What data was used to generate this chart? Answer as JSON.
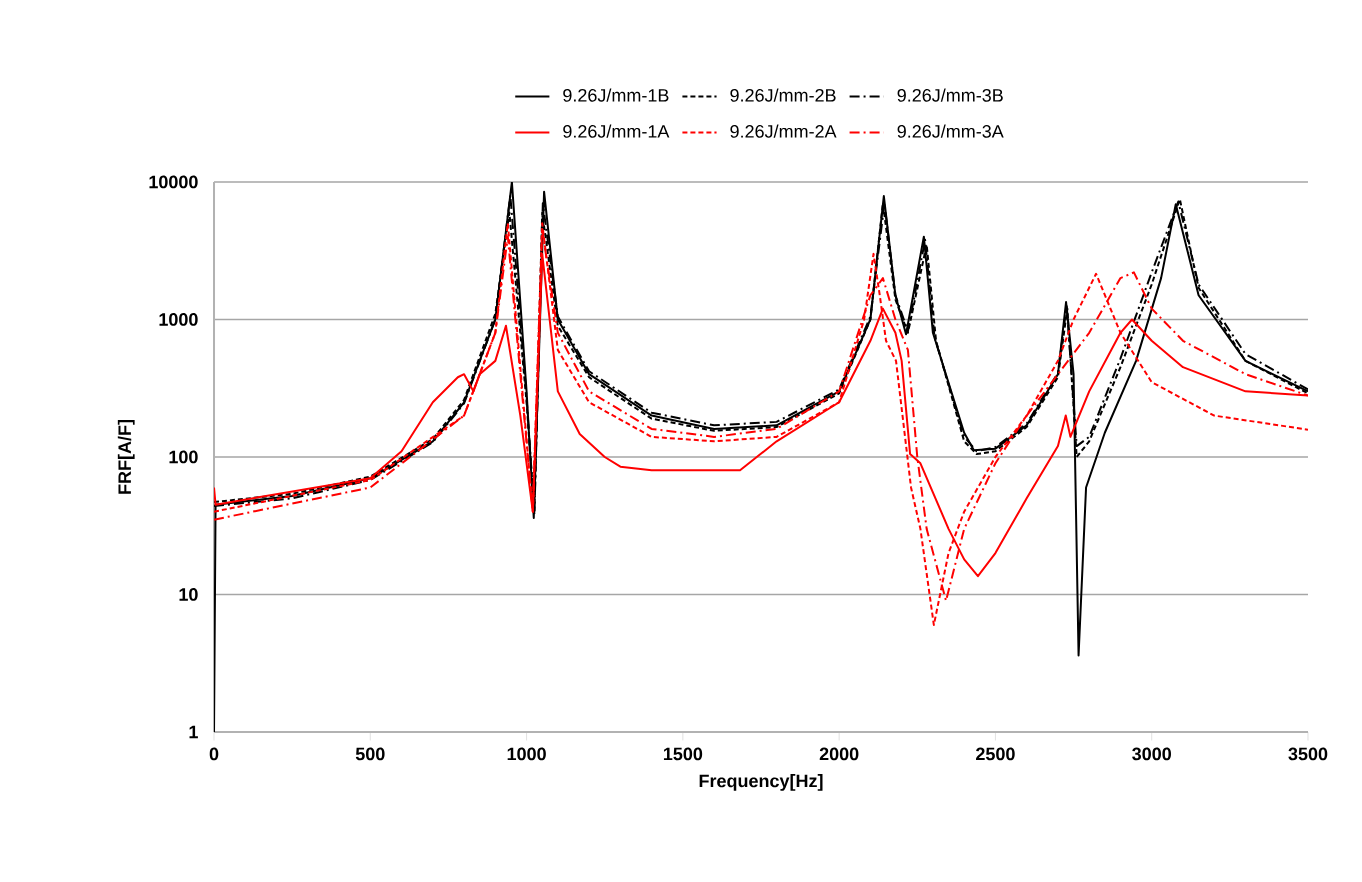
{
  "chart_data": {
    "type": "line",
    "xlabel": "Frequency[Hz]",
    "ylabel": "FRF[A/F]",
    "xlim": [
      0,
      3500
    ],
    "xticks": [
      0,
      500,
      1000,
      1500,
      2000,
      2500,
      3000,
      3500
    ],
    "ylim": [
      1,
      10000
    ],
    "yticks": [
      1,
      10,
      100,
      1000,
      10000
    ],
    "log": "y",
    "grid": "y",
    "legend": "top",
    "marker": "none",
    "series": [
      {
        "name": "9.26J/mm-1B",
        "color": "#000000",
        "line_style": "solid",
        "x": [
          0,
          5,
          250,
          500,
          700,
          800,
          900,
          953,
          1000,
          1023,
          1056,
          1100,
          1200,
          1400,
          1600,
          1800,
          2000,
          2100,
          2143,
          2180,
          2214,
          2271,
          2300,
          2400,
          2431,
          2500,
          2600,
          2700,
          2726,
          2750,
          2766,
          2790,
          2850,
          2950,
          3030,
          3077,
          3150,
          3300,
          3500
        ],
        "values": [
          1,
          45,
          52,
          70,
          130,
          250,
          1000,
          10000,
          300,
          36,
          8500,
          1000,
          400,
          200,
          160,
          170,
          300,
          1000,
          7900,
          1500,
          780,
          4000,
          800,
          150,
          112,
          115,
          170,
          400,
          1340,
          400,
          3.6,
          60,
          150,
          500,
          2000,
          6900,
          1500,
          500,
          300
        ]
      },
      {
        "name": "9.26J/mm-2B",
        "color": "#000000",
        "line_style": "dashed",
        "x": [
          0,
          250,
          500,
          700,
          800,
          900,
          945,
          1000,
          1025,
          1050,
          1100,
          1200,
          1400,
          1600,
          1800,
          2000,
          2100,
          2140,
          2180,
          2220,
          2280,
          2310,
          2400,
          2440,
          2500,
          2600,
          2700,
          2730,
          2760,
          2800,
          2900,
          3000,
          3090,
          3150,
          3300,
          3500
        ],
        "values": [
          47,
          54,
          72,
          135,
          260,
          1100,
          6000,
          250,
          40,
          6000,
          900,
          380,
          190,
          155,
          165,
          290,
          1000,
          7000,
          1400,
          800,
          3500,
          700,
          130,
          105,
          110,
          165,
          380,
          1200,
          100,
          130,
          450,
          1800,
          7500,
          1700,
          500,
          290
        ]
      },
      {
        "name": "9.26J/mm-3B",
        "color": "#000000",
        "line_style": "dashdot",
        "x": [
          0,
          250,
          500,
          700,
          800,
          900,
          948,
          1000,
          1025,
          1052,
          1100,
          1200,
          1400,
          1600,
          1800,
          2000,
          2100,
          2145,
          2180,
          2220,
          2275,
          2305,
          2400,
          2440,
          2500,
          2600,
          2700,
          2728,
          2760,
          2800,
          2900,
          3000,
          3085,
          3150,
          3300,
          3500
        ],
        "values": [
          44,
          50,
          68,
          128,
          245,
          1000,
          8000,
          270,
          38,
          7000,
          1050,
          420,
          210,
          170,
          180,
          310,
          1050,
          7000,
          1500,
          820,
          3800,
          750,
          140,
          110,
          118,
          175,
          410,
          1250,
          120,
          140,
          520,
          2200,
          7200,
          1800,
          560,
          310
        ]
      },
      {
        "name": "9.26J/mm-1A",
        "color": "#ff0000",
        "line_style": "solid",
        "x": [
          0,
          5,
          500,
          600,
          700,
          780,
          800,
          830,
          850,
          900,
          934,
          980,
          1020,
          1050,
          1100,
          1170,
          1250,
          1300,
          1400,
          1683,
          1800,
          2000,
          2100,
          2140,
          2180,
          2200,
          2227,
          2260,
          2350,
          2400,
          2444,
          2500,
          2600,
          2700,
          2725,
          2740,
          2800,
          2900,
          2937,
          3000,
          3100,
          3300,
          3500
        ],
        "values": [
          60,
          45,
          70,
          110,
          250,
          380,
          400,
          300,
          400,
          500,
          900,
          200,
          40,
          3000,
          300,
          147,
          100,
          85,
          80,
          80,
          130,
          250,
          700,
          1200,
          800,
          500,
          105,
          90,
          30,
          18,
          13.6,
          20,
          50,
          120,
          200,
          140,
          300,
          800,
          1000,
          700,
          450,
          300,
          280
        ]
      },
      {
        "name": "9.26J/mm-2A",
        "color": "#ff0000",
        "line_style": "dashed",
        "x": [
          0,
          500,
          800,
          900,
          940,
          1020,
          1050,
          1100,
          1200,
          1400,
          1600,
          1800,
          2000,
          2080,
          2110,
          2130,
          2150,
          2182,
          2230,
          2260,
          2303,
          2350,
          2400,
          2500,
          2600,
          2700,
          2750,
          2822,
          2900,
          3000,
          3200,
          3500
        ],
        "values": [
          40,
          68,
          200,
          800,
          5000,
          40,
          5000,
          600,
          250,
          140,
          130,
          140,
          250,
          1000,
          3000,
          1500,
          700,
          500,
          60,
          30,
          6,
          20,
          40,
          100,
          200,
          500,
          1000,
          2150,
          800,
          350,
          200,
          158
        ]
      },
      {
        "name": "9.26J/mm-3A",
        "color": "#ff0000",
        "line_style": "dashdot",
        "x": [
          0,
          500,
          800,
          900,
          940,
          1020,
          1050,
          1100,
          1200,
          1400,
          1600,
          1800,
          2000,
          2100,
          2140,
          2180,
          2220,
          2250,
          2280,
          2342,
          2400,
          2500,
          2600,
          2700,
          2800,
          2900,
          2943,
          3000,
          3100,
          3300,
          3500
        ],
        "values": [
          35,
          60,
          200,
          800,
          4000,
          40,
          4500,
          800,
          300,
          160,
          140,
          160,
          300,
          1500,
          2000,
          1000,
          600,
          100,
          30,
          9,
          30,
          90,
          200,
          400,
          800,
          2000,
          2200,
          1200,
          700,
          400,
          280
        ]
      }
    ]
  }
}
